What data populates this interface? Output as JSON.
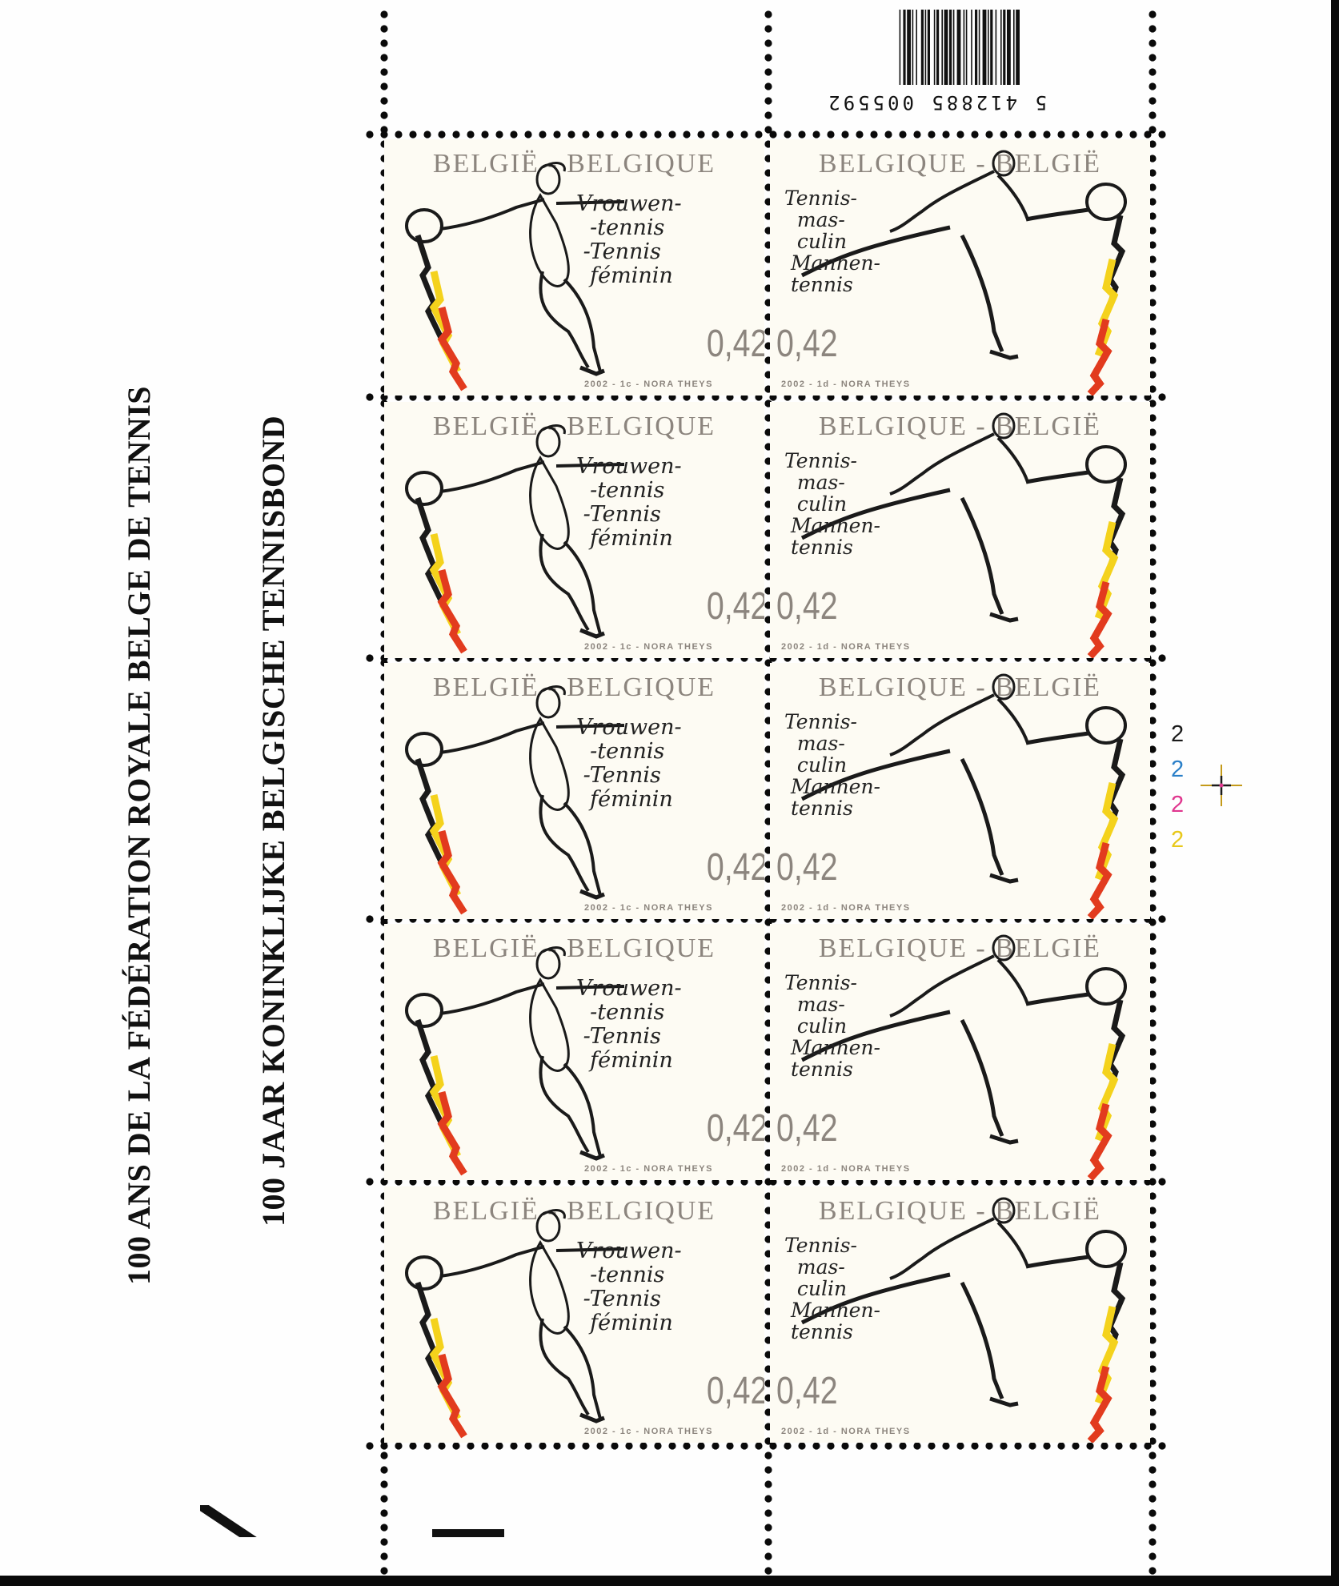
{
  "sheet": {
    "headline_fr": "100 ANS DE LA FÉDÉRATION ROYALE BELGE DE TENNIS",
    "headline_nl": "100 JAAR KONINKLIJKE BELGISCHE TENNISBOND",
    "barcode_digits": "5 412885 005592",
    "plate_numbers": [
      "2",
      "2",
      "2",
      "2"
    ],
    "plate_colors": [
      "#1a1a1a",
      "#2a7fc8",
      "#e0378f",
      "#f2d21e"
    ]
  },
  "stamps": {
    "left": {
      "country": "BELGIË - BELGIQUE",
      "value": "0,42",
      "credit": "2002 - 1c - NORA THEYS",
      "script": "Vrouwen-\n  -tennis\n -Tennis\n  féminin"
    },
    "right": {
      "country": "BELGIQUE - BELGIË",
      "value": "0,42",
      "credit": "2002 - 1d - NORA THEYS",
      "script": "Tennis-\n  mas-\n  culin\n Mannen-\n tennis"
    }
  },
  "colors": {
    "flag_black": "#1a1a1a",
    "flag_yellow": "#f4d21c",
    "flag_red": "#e23b1e",
    "ink_grey": "#8c857e"
  }
}
